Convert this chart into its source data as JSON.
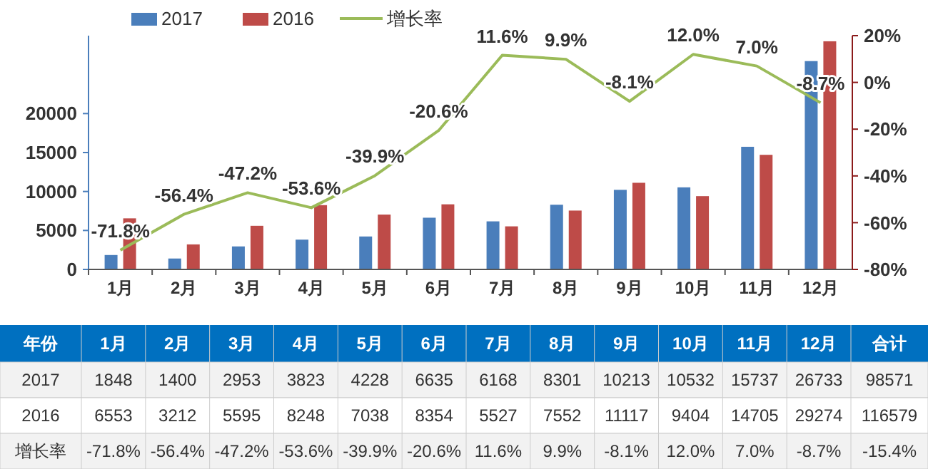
{
  "chart_data": {
    "type": "bar",
    "categories": [
      "1月",
      "2月",
      "3月",
      "4月",
      "5月",
      "6月",
      "7月",
      "8月",
      "9月",
      "10月",
      "11月",
      "12月"
    ],
    "series": [
      {
        "name": "2017",
        "color": "#4a7ebb",
        "values": [
          1848,
          1400,
          2953,
          3823,
          4228,
          6635,
          6168,
          8301,
          10213,
          10532,
          15737,
          26733
        ]
      },
      {
        "name": "2016",
        "color": "#be4b48",
        "values": [
          6553,
          3212,
          5595,
          8248,
          7038,
          8354,
          5527,
          7552,
          11117,
          9404,
          14705,
          29274
        ]
      },
      {
        "name": "增长率",
        "type": "line",
        "axis": "y2",
        "color": "#9bbb59",
        "values": [
          -71.8,
          -56.4,
          -47.2,
          -53.6,
          -39.9,
          -20.6,
          11.6,
          9.9,
          -8.1,
          12.0,
          7.0,
          -8.7
        ],
        "value_labels": [
          "-71.8%",
          "-56.4%",
          "-47.2%",
          "-53.6%",
          "-39.9%",
          "-20.6%",
          "11.6%",
          "9.9%",
          "-8.1%",
          "12.0%",
          "7.0%",
          "-8.7%"
        ]
      }
    ],
    "ylim": [
      0,
      30000
    ],
    "yticks": [
      0,
      5000,
      10000,
      15000,
      20000
    ],
    "y2lim": [
      -80,
      20
    ],
    "y2ticks": [
      {
        "value": -80,
        "label": "-80%"
      },
      {
        "value": -60,
        "label": "-60%"
      },
      {
        "value": -40,
        "label": "-40%"
      },
      {
        "value": -20,
        "label": "-20%"
      },
      {
        "value": 0,
        "label": "0%"
      },
      {
        "value": 20,
        "label": "20%"
      }
    ],
    "data_labels": true,
    "legend": "top",
    "marker": "none",
    "grid": false,
    "annotations": [
      "年份",
      "合计",
      "98571",
      "116579",
      "-15.4%"
    ]
  }
}
